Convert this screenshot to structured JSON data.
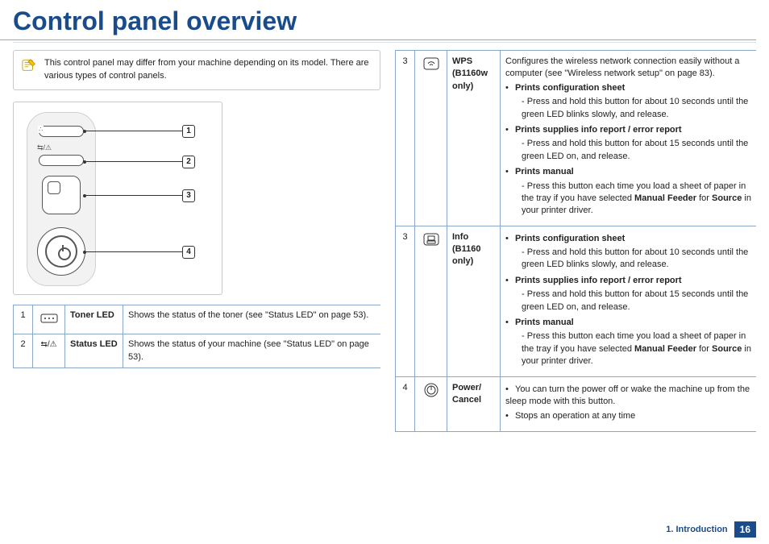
{
  "title": "Control panel overview",
  "note": "This control panel may differ from your machine depending on its model. There are various types of control panels.",
  "callouts": [
    "1",
    "2",
    "3",
    "4"
  ],
  "left_table": [
    {
      "num": "1",
      "name": "Toner LED",
      "desc": "Shows the status of the toner (see \"Status LED\" on page 53)."
    },
    {
      "num": "2",
      "name": "Status LED",
      "desc": "Shows the status of your machine (see \"Status LED\" on page 53)."
    }
  ],
  "right_table": [
    {
      "num": "3",
      "name": "WPS (B1160w only)",
      "intro": "Configures the wireless network connection easily without a computer (see \"Wireless network setup\" on page 83).",
      "bullets": [
        {
          "head": "Prints configuration sheet",
          "sub": "Press and hold this button for about 10 seconds until the green LED blinks slowly, and release."
        },
        {
          "head": "Prints supplies info report / error report",
          "sub": "Press and hold this button for about 15 seconds until the green LED on, and release."
        },
        {
          "head": "Prints manual",
          "sub": "Press this button each time you load a sheet of paper in the tray if you have selected <b>Manual Feeder</b> for <b>Source</b> in your printer driver."
        }
      ]
    },
    {
      "num": "3",
      "name": "Info (B1160 only)",
      "bullets": [
        {
          "head": "Prints configuration sheet",
          "sub": "Press and hold this button for about 10 seconds until the green LED blinks slowly, and release."
        },
        {
          "head": "Prints supplies info report / error report",
          "sub": "Press and hold this button for about 15 seconds until the green LED on, and release."
        },
        {
          "head": "Prints manual",
          "sub": "Press this button each time you load a sheet of paper in the tray if you have selected <b>Manual Feeder</b> for <b>Source</b> in your printer driver."
        }
      ]
    },
    {
      "num": "4",
      "name": "Power/ Cancel",
      "plain_bullets": [
        "You can turn the power off or wake the machine up from the sleep mode with this button.",
        "Stops an operation at any time"
      ]
    }
  ],
  "footer": {
    "chapter": "1. Introduction",
    "page": "16"
  }
}
